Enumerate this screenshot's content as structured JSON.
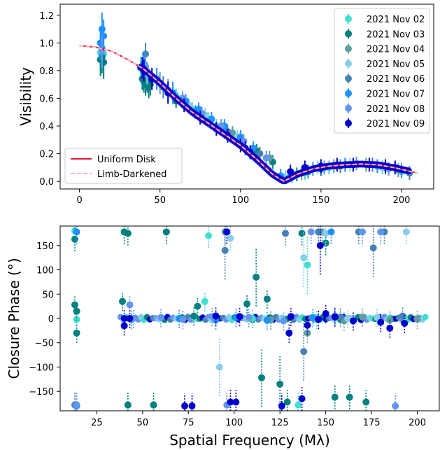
{
  "colors": {
    "nov02": "#40E0D0",
    "nov03": "#008080",
    "nov04": "#5F9EA0",
    "nov05": "#87CEEB",
    "nov06": "#4682B4",
    "nov07": "#1E90FF",
    "nov08": "#6495ED",
    "nov09": "#0000CD",
    "uniform_disk": "#DC143C",
    "limb_darkened": "#FFB6C1"
  },
  "chart_data": [
    {
      "type": "line",
      "xlabel": "",
      "ylabel": "Visibility",
      "xlim": [
        -12,
        220
      ],
      "ylim": [
        -0.055,
        1.28
      ],
      "xticks": [
        0,
        50,
        100,
        150,
        200
      ],
      "yticks": [
        0.0,
        0.2,
        0.4,
        0.6,
        0.8,
        1.0,
        1.2
      ],
      "xtick_labels": [
        "0",
        "50",
        "100",
        "150",
        "200"
      ],
      "ytick_labels": [
        "0.0",
        "0.2",
        "0.4",
        "0.6",
        "0.8",
        "1.0",
        "1.2"
      ],
      "grid": false,
      "legend_data_position": "upper-right",
      "legend_model_position": "lower-left",
      "series": [
        {
          "name": "2021 Nov 02",
          "color_key": "nov02",
          "x": [
            13,
            14,
            15,
            38,
            40,
            42,
            60,
            70,
            80,
            85,
            95,
            110,
            140,
            155,
            170,
            185,
            200
          ],
          "y": [
            0.93,
            0.95,
            0.92,
            0.82,
            0.78,
            0.75,
            0.62,
            0.52,
            0.45,
            0.4,
            0.33,
            0.22,
            0.06,
            0.1,
            0.12,
            0.11,
            0.07
          ]
        },
        {
          "name": "2021 Nov 03",
          "color_key": "nov03",
          "x": [
            13,
            14,
            15,
            39,
            40,
            41,
            42,
            43,
            44,
            60,
            75,
            90,
            110,
            120,
            135,
            150,
            165,
            190
          ],
          "y": [
            0.88,
            0.9,
            0.86,
            0.74,
            0.72,
            0.7,
            0.72,
            0.68,
            0.7,
            0.58,
            0.46,
            0.36,
            0.22,
            0.14,
            0.05,
            0.09,
            0.12,
            0.1
          ]
        },
        {
          "name": "2021 Nov 04",
          "color_key": "nov04",
          "x": [
            40,
            55,
            75,
            95,
            118,
            138,
            158,
            178,
            198
          ],
          "y": [
            0.8,
            0.66,
            0.49,
            0.35,
            0.17,
            0.06,
            0.11,
            0.12,
            0.08
          ]
        },
        {
          "name": "2021 Nov 05",
          "color_key": "nov05",
          "x": [
            42,
            58,
            68,
            78,
            98,
            128,
            148,
            168,
            188
          ],
          "y": [
            0.78,
            0.64,
            0.55,
            0.48,
            0.32,
            0.03,
            0.1,
            0.12,
            0.1
          ]
        },
        {
          "name": "2021 Nov 06",
          "color_key": "nov06",
          "x": [
            14,
            40,
            41,
            52,
            72,
            92,
            112,
            142,
            162,
            182,
            205
          ],
          "y": [
            0.96,
            0.82,
            0.92,
            0.68,
            0.5,
            0.36,
            0.2,
            0.07,
            0.11,
            0.12,
            0.06
          ]
        },
        {
          "name": "2021 Nov 07",
          "color_key": "nov07",
          "x": [
            13,
            14,
            15,
            40,
            48,
            58,
            66,
            74,
            82,
            90,
            100,
            108,
            125,
            145,
            165,
            185,
            200
          ],
          "y": [
            1.0,
            1.1,
            1.05,
            0.85,
            0.74,
            0.64,
            0.58,
            0.52,
            0.45,
            0.4,
            0.32,
            0.24,
            0.04,
            0.09,
            0.12,
            0.11,
            0.08
          ]
        },
        {
          "name": "2021 Nov 08",
          "color_key": "nov08",
          "x": [
            14,
            41,
            50,
            64,
            76,
            88,
            102,
            116,
            132,
            152,
            172,
            192
          ],
          "y": [
            0.94,
            0.83,
            0.71,
            0.6,
            0.49,
            0.4,
            0.29,
            0.17,
            0.04,
            0.1,
            0.13,
            0.09
          ]
        },
        {
          "name": "2021 Nov 09",
          "color_key": "nov09",
          "x": [
            39,
            40,
            45,
            55,
            65,
            75,
            85,
            92,
            100,
            103,
            106,
            131,
            140,
            150,
            160,
            170,
            180,
            190,
            196
          ],
          "y": [
            0.82,
            0.8,
            0.74,
            0.64,
            0.55,
            0.46,
            0.38,
            0.33,
            0.26,
            0.24,
            0.21,
            0.07,
            0.1,
            0.11,
            0.12,
            0.12,
            0.12,
            0.11,
            0.1
          ]
        }
      ],
      "models": [
        {
          "name": "Uniform Disk",
          "color_key": "uniform_disk",
          "style": "solid"
        },
        {
          "name": "Limb-Darkened",
          "color_key": "limb_darkened",
          "style": "dashed"
        }
      ],
      "model_curve": {
        "x": [
          0,
          10,
          20,
          30,
          40,
          50,
          60,
          70,
          80,
          90,
          100,
          110,
          120,
          127,
          135,
          145,
          155,
          165,
          175,
          185,
          195,
          210
        ],
        "y": [
          0.98,
          0.97,
          0.94,
          0.88,
          0.81,
          0.71,
          0.6,
          0.5,
          0.42,
          0.34,
          0.26,
          0.16,
          0.05,
          0.0,
          0.05,
          0.09,
          0.11,
          0.12,
          0.125,
          0.12,
          0.1,
          0.06
        ]
      }
    },
    {
      "type": "scatter",
      "xlabel": "Spatial Frequency (Mλ)",
      "ylabel": "Closure Phase (°)",
      "xlim": [
        5,
        212
      ],
      "ylim": [
        -190,
        190
      ],
      "xticks": [
        25,
        50,
        75,
        100,
        125,
        150,
        175,
        200
      ],
      "yticks": [
        -150,
        -100,
        -50,
        0,
        50,
        100,
        150
      ],
      "xtick_labels": [
        "25",
        "50",
        "75",
        "100",
        "125",
        "150",
        "175",
        "200"
      ],
      "ytick_labels": [
        "−150",
        "−100",
        "−50",
        "0",
        "50",
        "100",
        "150"
      ],
      "grid": false,
      "series": [
        {
          "name": "2021 Nov 02",
          "color_key": "nov02",
          "x": [
            13,
            14,
            14,
            84,
            86,
            110,
            135,
            140,
            145
          ],
          "y": [
            180,
            -2,
            15,
            35,
            170,
            0,
            -178,
            110,
            -2
          ]
        },
        {
          "name": "2021 Nov 03",
          "color_key": "nov03",
          "x": [
            13,
            13,
            14,
            14,
            14,
            39,
            40,
            42,
            42,
            56,
            63,
            78,
            80,
            107,
            112,
            115,
            118,
            125,
            129,
            137,
            150,
            155,
            163,
            172
          ],
          "y": [
            163,
            28,
            15,
            -30,
            -178,
            35,
            178,
            175,
            -178,
            -178,
            178,
            5,
            25,
            30,
            85,
            -122,
            40,
            -135,
            -172,
            175,
            155,
            -162,
            -162,
            -172
          ]
        },
        {
          "name": "2021 Nov 04",
          "color_key": "nov04",
          "x": [
            95,
            120,
            140,
            148,
            160,
            170,
            185,
            200
          ],
          "y": [
            178,
            -3,
            -30,
            178,
            -5,
            3,
            -3,
            -2
          ]
        },
        {
          "name": "2021 Nov 05",
          "color_key": "nov05",
          "x": [
            92,
            98,
            138,
            150,
            162,
            178,
            194
          ],
          "y": [
            -100,
            165,
            125,
            175,
            0,
            2,
            178
          ]
        },
        {
          "name": "2021 Nov 06",
          "color_key": "nov06",
          "x": [
            13,
            95,
            128,
            138,
            146,
            158,
            168,
            176,
            182,
            192
          ],
          "y": [
            -178,
            140,
            175,
            -68,
            178,
            3,
            178,
            145,
            178,
            5
          ]
        },
        {
          "name": "2021 Nov 07",
          "color_key": "nov07",
          "x": [
            14,
            14,
            44,
            70,
            90,
            101,
            118,
            143,
            153
          ],
          "y": [
            178,
            -180,
            -2,
            0,
            -3,
            2,
            -4,
            2,
            178
          ]
        },
        {
          "name": "2021 Nov 08",
          "color_key": "nov08",
          "x": [
            14,
            43,
            45,
            60,
            72,
            88,
            96,
            108,
            127,
            142,
            155,
            170,
            180,
            188
          ],
          "y": [
            -178,
            28,
            0,
            2,
            -2,
            4,
            -178,
            2,
            -5,
            178,
            5,
            178,
            178,
            -180
          ]
        },
        {
          "name": "2021 Nov 09",
          "color_key": "nov09",
          "x": [
            40,
            40,
            43,
            73,
            77,
            90,
            96,
            98,
            101,
            103,
            126,
            130,
            131,
            137,
            140,
            146,
            147,
            150,
            155,
            165,
            180,
            185,
            193
          ],
          "y": [
            0,
            -15,
            0,
            -180,
            -180,
            5,
            178,
            -172,
            -172,
            4,
            -180,
            -30,
            4,
            -165,
            -14,
            -2,
            150,
            10,
            3,
            -5,
            -8,
            -20,
            -10
          ]
        }
      ]
    }
  ]
}
